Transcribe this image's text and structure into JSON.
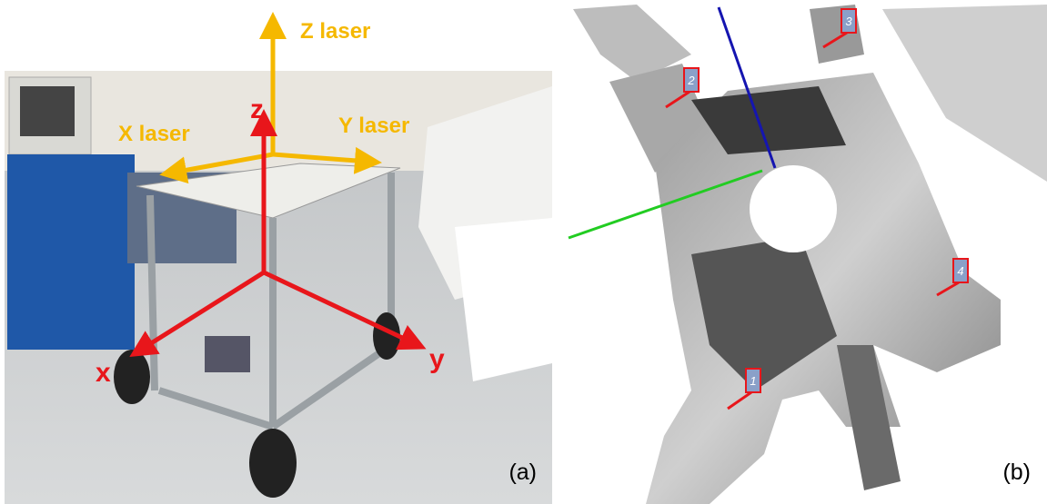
{
  "panel_a": {
    "caption": "(a)",
    "laser_axes": {
      "z": "Z laser",
      "x": "X laser",
      "y": "Y laser"
    },
    "robot_axes": {
      "z": "z",
      "x": "x",
      "y": "y"
    }
  },
  "panel_b": {
    "caption": "(b)",
    "markers": [
      "1",
      "2",
      "3",
      "4"
    ]
  }
}
